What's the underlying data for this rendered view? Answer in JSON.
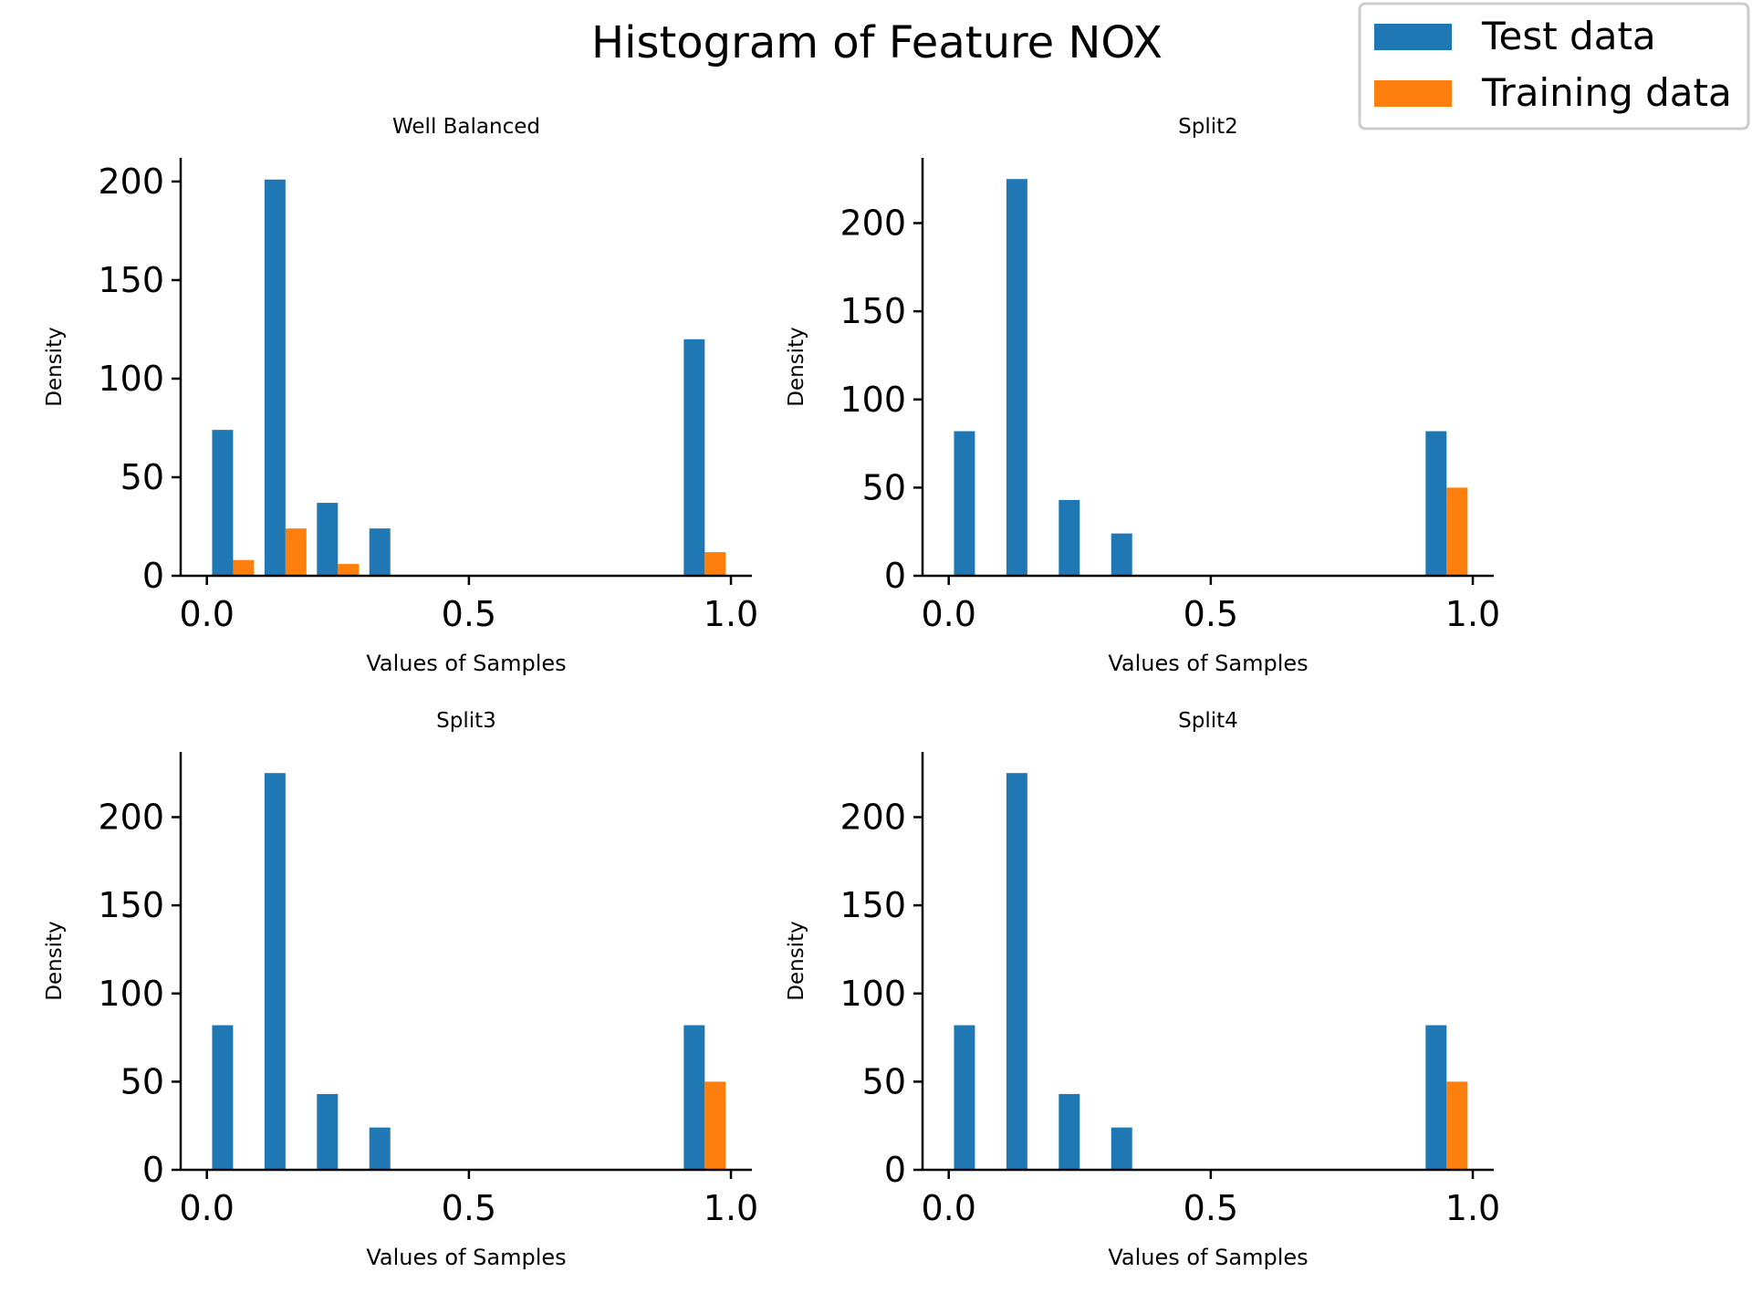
{
  "figure": {
    "title": "Histogram of Feature NOX",
    "legend": {
      "placement": "top-right",
      "entries": [
        {
          "label": "Test data",
          "color": "#1f77b4"
        },
        {
          "label": "Training data",
          "color": "#ff7f0e"
        }
      ]
    }
  },
  "chart_data": [
    {
      "type": "bar",
      "title": "Well Balanced",
      "xlabel": "Values of Samples",
      "ylabel": "Density",
      "xlim": [
        -0.05,
        1.04
      ],
      "ylim": [
        0,
        212
      ],
      "xticks": [
        0.0,
        0.5,
        1.0
      ],
      "xtick_labels": [
        "0.0",
        "0.5",
        "1.0"
      ],
      "yticks": [
        0,
        50,
        100,
        150,
        200
      ],
      "ytick_labels": [
        "0",
        "50",
        "100",
        "150",
        "200"
      ],
      "bin_width": 0.1,
      "bin_starts": [
        0.0,
        0.1,
        0.2,
        0.3,
        0.9
      ],
      "series": [
        {
          "name": "Test data",
          "color": "#1f77b4",
          "values": [
            74,
            201,
            37,
            24,
            120
          ]
        },
        {
          "name": "Training data",
          "color": "#ff7f0e",
          "values": [
            8,
            24,
            6,
            0,
            12
          ]
        }
      ]
    },
    {
      "type": "bar",
      "title": "Split2",
      "xlabel": "Values of Samples",
      "ylabel": "Density",
      "xlim": [
        -0.05,
        1.04
      ],
      "ylim": [
        0,
        237
      ],
      "xticks": [
        0.0,
        0.5,
        1.0
      ],
      "xtick_labels": [
        "0.0",
        "0.5",
        "1.0"
      ],
      "yticks": [
        0,
        50,
        100,
        150,
        200
      ],
      "ytick_labels": [
        "0",
        "50",
        "100",
        "150",
        "200"
      ],
      "bin_width": 0.1,
      "bin_starts": [
        0.0,
        0.1,
        0.2,
        0.3,
        0.9
      ],
      "series": [
        {
          "name": "Test data",
          "color": "#1f77b4",
          "values": [
            82,
            225,
            43,
            24,
            82
          ]
        },
        {
          "name": "Training data",
          "color": "#ff7f0e",
          "values": [
            0,
            0,
            0,
            0,
            50
          ]
        }
      ]
    },
    {
      "type": "bar",
      "title": "Split3",
      "xlabel": "Values of Samples",
      "ylabel": "Density",
      "xlim": [
        -0.05,
        1.04
      ],
      "ylim": [
        0,
        237
      ],
      "xticks": [
        0.0,
        0.5,
        1.0
      ],
      "xtick_labels": [
        "0.0",
        "0.5",
        "1.0"
      ],
      "yticks": [
        0,
        50,
        100,
        150,
        200
      ],
      "ytick_labels": [
        "0",
        "50",
        "100",
        "150",
        "200"
      ],
      "bin_width": 0.1,
      "bin_starts": [
        0.0,
        0.1,
        0.2,
        0.3,
        0.9
      ],
      "series": [
        {
          "name": "Test data",
          "color": "#1f77b4",
          "values": [
            82,
            225,
            43,
            24,
            82
          ]
        },
        {
          "name": "Training data",
          "color": "#ff7f0e",
          "values": [
            0,
            0,
            0,
            0,
            50
          ]
        }
      ]
    },
    {
      "type": "bar",
      "title": "Split4",
      "xlabel": "Values of Samples",
      "ylabel": "Density",
      "xlim": [
        -0.05,
        1.04
      ],
      "ylim": [
        0,
        237
      ],
      "xticks": [
        0.0,
        0.5,
        1.0
      ],
      "xtick_labels": [
        "0.0",
        "0.5",
        "1.0"
      ],
      "yticks": [
        0,
        50,
        100,
        150,
        200
      ],
      "ytick_labels": [
        "0",
        "50",
        "100",
        "150",
        "200"
      ],
      "bin_width": 0.1,
      "bin_starts": [
        0.0,
        0.1,
        0.2,
        0.3,
        0.9
      ],
      "series": [
        {
          "name": "Test data",
          "color": "#1f77b4",
          "values": [
            82,
            225,
            43,
            24,
            82
          ]
        },
        {
          "name": "Training data",
          "color": "#ff7f0e",
          "values": [
            0,
            0,
            0,
            0,
            50
          ]
        }
      ]
    }
  ]
}
